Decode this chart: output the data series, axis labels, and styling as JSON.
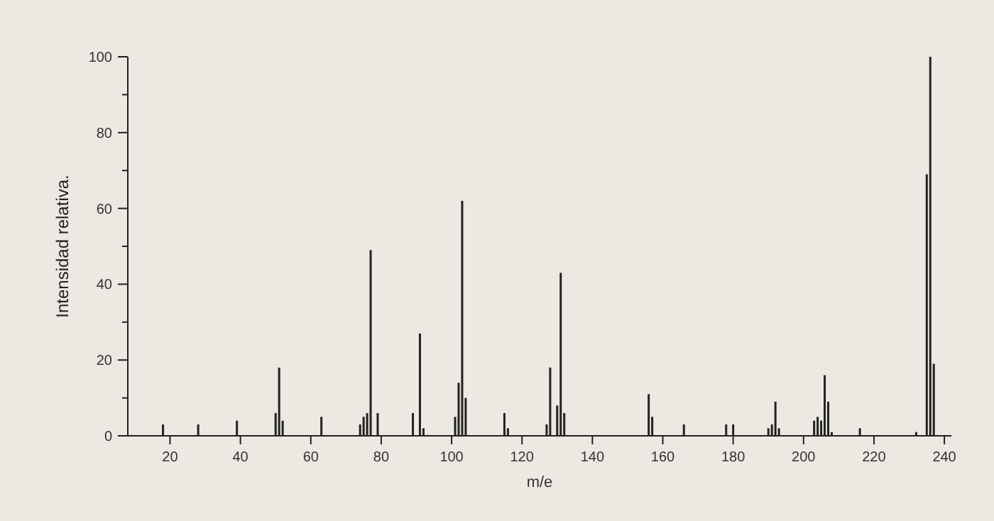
{
  "chart_data": {
    "type": "bar",
    "xlabel": "m/e",
    "ylabel": "Intensidad relativa.",
    "color": "#222222",
    "x": [
      18,
      28,
      39,
      50,
      51,
      52,
      63,
      74,
      75,
      76,
      77,
      79,
      89,
      91,
      92,
      101,
      102,
      103,
      104,
      115,
      116,
      127,
      128,
      130,
      131,
      132,
      156,
      157,
      166,
      178,
      180,
      190,
      191,
      192,
      193,
      203,
      204,
      205,
      206,
      207,
      208,
      216,
      232,
      235,
      236,
      237
    ],
    "values": [
      3,
      3,
      4,
      6,
      18,
      4,
      5,
      3,
      5,
      6,
      49,
      6,
      6,
      27,
      2,
      5,
      14,
      62,
      10,
      6,
      2,
      3,
      18,
      8,
      43,
      6,
      11,
      5,
      3,
      3,
      3,
      2,
      3,
      9,
      2,
      4,
      5,
      4,
      16,
      9,
      1,
      2,
      1,
      69,
      100,
      19
    ],
    "xlim": [
      8,
      242
    ],
    "xticks": [
      20,
      40,
      60,
      80,
      100,
      120,
      140,
      160,
      180,
      200,
      220,
      240
    ],
    "ylim": [
      0,
      100
    ],
    "yticks": [
      0,
      {
        "value": 10,
        "label": null
      },
      20,
      {
        "value": 30,
        "label": null
      },
      40,
      {
        "value": 50,
        "label": null
      },
      60,
      {
        "value": 70,
        "label": null
      },
      80,
      {
        "value": 90,
        "label": null
      },
      100
    ],
    "grid": false
  }
}
